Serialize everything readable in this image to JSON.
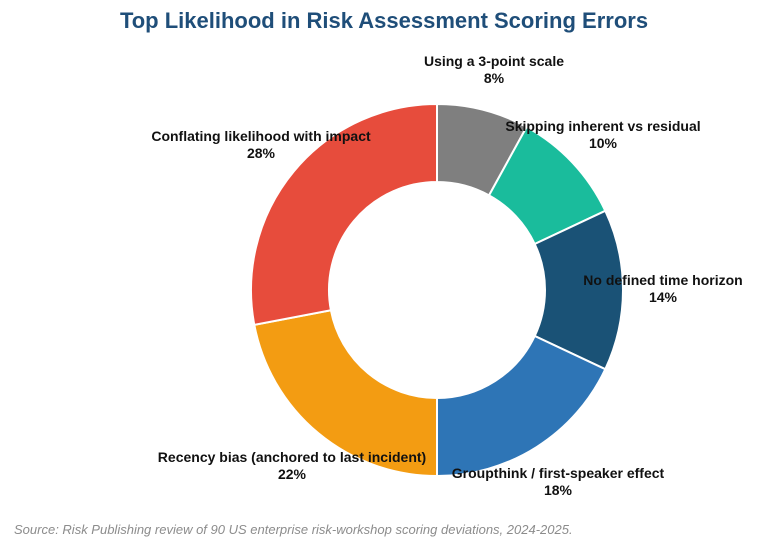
{
  "chart_data": {
    "type": "pie",
    "variant": "donut",
    "title": "Top Likelihood in Risk Assessment Scoring Errors",
    "categories": [
      "Using a 3-point scale",
      "Skipping inherent vs residual",
      "No defined time horizon",
      "Groupthink / first-speaker effect",
      "Recency bias (anchored to last incident)",
      "Conflating likelihood with impact"
    ],
    "values": [
      8,
      10,
      14,
      18,
      22,
      28
    ],
    "value_labels": [
      "8%",
      "10%",
      "14%",
      "18%",
      "22%",
      "28%"
    ],
    "colors": [
      "#7f7f7f",
      "#1abc9c",
      "#1a5276",
      "#2e75b6",
      "#f39c12",
      "#e74c3c"
    ],
    "start_angle": "12 o'clock",
    "direction": "clockwise",
    "legend": "none",
    "source": "Source: Risk Publishing review of 90 US enterprise risk-workshop scoring deviations, 2024-2025."
  }
}
